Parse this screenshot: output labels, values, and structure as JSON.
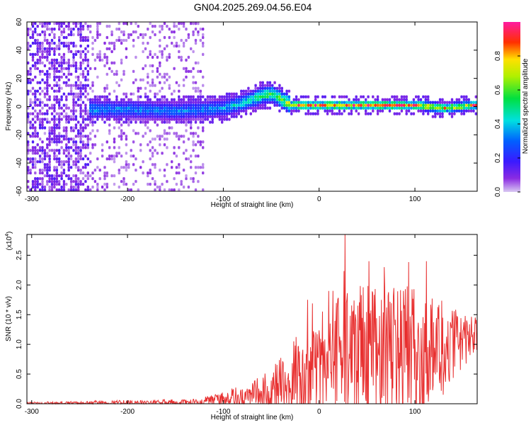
{
  "figure": {
    "title": "GN04.2025.269.04.56.E04"
  },
  "chart_data": [
    {
      "type": "heatmap",
      "title": "GN04.2025.269.04.56.E04",
      "xlabel": "Height of straight line (km)",
      "ylabel": "Frequency (Hz)",
      "xlim": [
        -305,
        165
      ],
      "ylim": [
        -60,
        60
      ],
      "x_ticks": [
        -300,
        -200,
        -100,
        0,
        100
      ],
      "x_tick_labels": [
        "-300",
        "-200",
        "-100",
        "0",
        "100"
      ],
      "y_ticks": [
        -60,
        -40,
        -20,
        0,
        20,
        40,
        60
      ],
      "y_tick_labels": [
        "-60",
        "-40",
        "-20",
        "0",
        "20",
        "40",
        "60"
      ],
      "colorbar": {
        "label": "Normalized spectral amplitude",
        "range": [
          0,
          1
        ],
        "ticks": [
          0.0,
          0.2,
          0.4,
          0.6,
          0.8
        ],
        "tick_labels": [
          "0.0",
          "0.2",
          "0.4",
          "0.6",
          "0.8"
        ],
        "colormap": "rainbow (purple-blue-cyan-green-yellow-red-magenta)"
      },
      "ridge": {
        "x": [
          -240,
          -200,
          -150,
          -120,
          -100,
          -80,
          -60,
          -50,
          -40,
          -30,
          0,
          50,
          100,
          130,
          160
        ],
        "center_freq": [
          -3,
          -3,
          -4,
          -3,
          -2,
          2,
          7,
          8,
          4,
          0,
          0,
          0,
          0,
          -2,
          0
        ],
        "peak_amplitude": [
          0.4,
          0.35,
          0.35,
          0.35,
          0.4,
          0.5,
          0.65,
          0.7,
          0.75,
          0.95,
          0.95,
          0.95,
          0.95,
          0.85,
          0.95
        ]
      },
      "noise_region_x": [
        -305,
        -120
      ]
    },
    {
      "type": "line",
      "title": "",
      "xlabel": "Height of straight line (km)",
      "ylabel": "SNR (10 * v/v)",
      "y_scale_note": "(x10",
      "y_scale_exp": "4",
      "xlim": [
        -305,
        165
      ],
      "ylim": [
        0,
        2.85
      ],
      "x_ticks": [
        -300,
        -200,
        -100,
        0,
        100
      ],
      "x_tick_labels": [
        "-300",
        "-200",
        "-100",
        "0",
        "100"
      ],
      "y_ticks": [
        0.0,
        0.5,
        1.0,
        1.5,
        2.0,
        2.5
      ],
      "y_tick_labels": [
        "0.0",
        "0.5",
        "1.0",
        "1.5",
        "2.0",
        "2.5"
      ],
      "color": "#e83030",
      "envelope": {
        "x": [
          -305,
          -200,
          -130,
          -110,
          -80,
          -50,
          -40,
          -20,
          0,
          10,
          27,
          40,
          60,
          80,
          100,
          120,
          140,
          165
        ],
        "mean": [
          0.01,
          0.02,
          0.03,
          0.05,
          0.12,
          0.22,
          0.3,
          0.45,
          0.5,
          0.6,
          0.8,
          0.8,
          0.8,
          0.8,
          0.8,
          0.85,
          1.0,
          1.2
        ],
        "spread": [
          0.02,
          0.04,
          0.05,
          0.1,
          0.2,
          0.35,
          0.5,
          0.8,
          0.8,
          0.9,
          1.2,
          1.2,
          1.2,
          1.2,
          1.2,
          1.0,
          0.6,
          0.3
        ]
      },
      "peaks": [
        {
          "x": 27,
          "y": 2.85
        },
        {
          "x": 52,
          "y": 2.4
        },
        {
          "x": 68,
          "y": 2.3
        },
        {
          "x": 112,
          "y": 2.4
        },
        {
          "x": -12,
          "y": 1.75
        },
        {
          "x": 10,
          "y": 1.9
        }
      ]
    }
  ]
}
